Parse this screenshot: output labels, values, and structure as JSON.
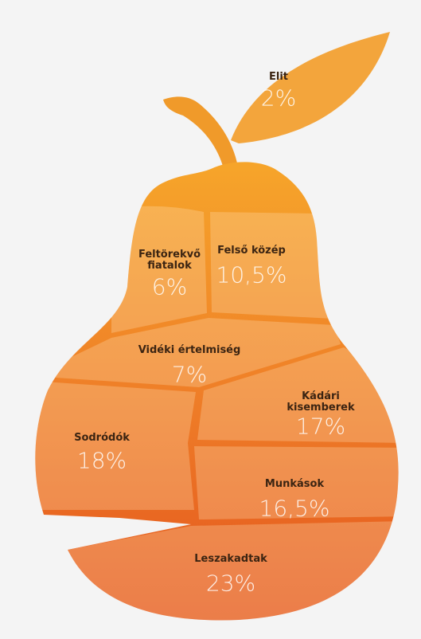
{
  "chart_data": {
    "type": "pear",
    "categories": [
      "Elit",
      "Feltörekvő fiatalok",
      "Felső közép",
      "Vidéki értelmiség",
      "Kádári kisemberek",
      "Sodródók",
      "Munkások",
      "Leszakadtak"
    ],
    "values": [
      2,
      6,
      10.5,
      7,
      17,
      18,
      16.5,
      23
    ],
    "value_labels": [
      "2%",
      "6%",
      "10,5%",
      "7%",
      "17%",
      "18%",
      "16,5%",
      "23%"
    ]
  }
}
